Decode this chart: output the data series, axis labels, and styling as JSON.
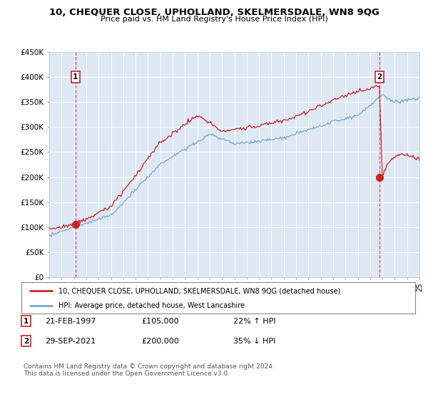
{
  "title": "10, CHEQUER CLOSE, UPHOLLAND, SKELMERSDALE, WN8 9QG",
  "subtitle": "Price paid vs. HM Land Registry's House Price Index (HPI)",
  "ylabel_ticks": [
    "£0",
    "£50K",
    "£100K",
    "£150K",
    "£200K",
    "£250K",
    "£300K",
    "£350K",
    "£400K",
    "£450K"
  ],
  "ytick_values": [
    0,
    50000,
    100000,
    150000,
    200000,
    250000,
    300000,
    350000,
    400000,
    450000
  ],
  "x_start_year": 1995,
  "x_end_year": 2025,
  "hpi_color": "#7ba7cc",
  "price_color": "#cc2222",
  "marker1_date": 1997.13,
  "marker1_value": 105000,
  "marker2_date": 2021.75,
  "marker2_value": 200000,
  "legend_label1": "10, CHEQUER CLOSE, UPHOLLAND, SKELMERSDALE, WN8 9QG (detached house)",
  "legend_label2": "HPI: Average price, detached house, West Lancashire",
  "annotation1_date": "21-FEB-1997",
  "annotation1_price": "£105,000",
  "annotation1_hpi": "22% ↑ HPI",
  "annotation2_date": "29-SEP-2021",
  "annotation2_price": "£200,000",
  "annotation2_hpi": "35% ↓ HPI",
  "footnote": "Contains HM Land Registry data © Crown copyright and database right 2024.\nThis data is licensed under the Open Government Licence v3.0.",
  "plot_bg_color": "#dde8f4"
}
